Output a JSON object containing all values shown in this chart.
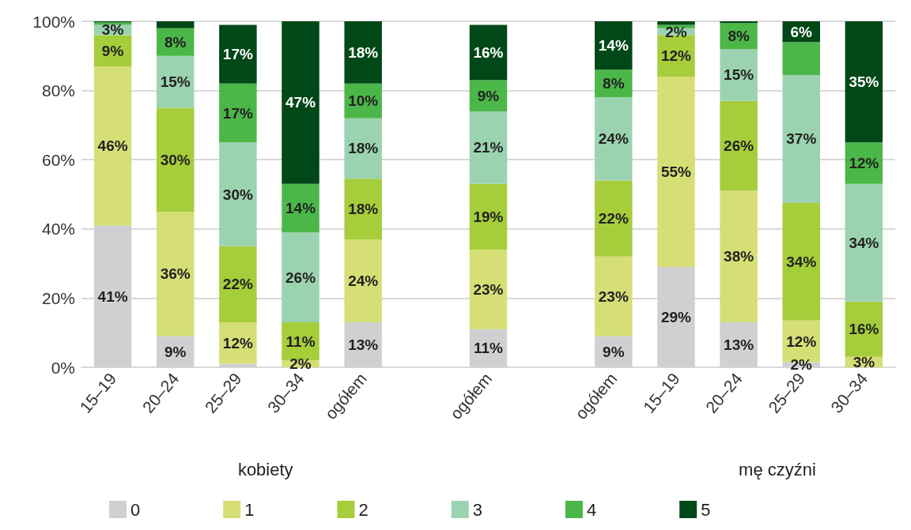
{
  "chart_data": {
    "type": "bar",
    "stacked": true,
    "categories": [
      "15–19",
      "20–24",
      "25–29",
      "30–34",
      "ogółem",
      null,
      "ogółem",
      null,
      "ogółem",
      "15–19",
      "20–24",
      "25–29",
      "30–34"
    ],
    "ylim": [
      0,
      100
    ],
    "yticks": [
      {
        "value": 0,
        "label": "0%"
      },
      {
        "value": 20,
        "label": "20%"
      },
      {
        "value": 40,
        "label": "40%"
      },
      {
        "value": 60,
        "label": "60%"
      },
      {
        "value": 80,
        "label": "80%"
      },
      {
        "value": 100,
        "label": "100%"
      }
    ],
    "grid": "y",
    "legend": "bottom",
    "annotations": [
      "kobiety",
      "mę czyźni"
    ],
    "series": [
      {
        "name": "0",
        "color": "#d0d0d2",
        "values": [
          41,
          9,
          1,
          0,
          13,
          null,
          11,
          null,
          9,
          29,
          13,
          1.5,
          0
        ],
        "value_labels": [
          "41%",
          "9%",
          null,
          null,
          "13%",
          null,
          "11%",
          null,
          "9%",
          "29%",
          "13%",
          "2%",
          null
        ]
      },
      {
        "name": "1",
        "color": "#d5df76",
        "values": [
          46,
          36,
          12,
          2,
          24,
          null,
          23,
          null,
          23,
          55,
          38,
          12,
          3
        ],
        "value_labels": [
          "46%",
          "36%",
          "12%",
          "2%",
          "24%",
          null,
          "23%",
          null,
          "23%",
          "55%",
          "38%",
          "12%",
          "3%"
        ]
      },
      {
        "name": "2",
        "color": "#a6cd3a",
        "values": [
          9,
          30,
          22,
          11,
          17.5,
          null,
          19,
          null,
          22,
          12,
          26,
          34,
          16
        ],
        "value_labels": [
          "9%",
          "30%",
          "22%",
          "11%",
          "18%",
          null,
          "19%",
          null,
          "22%",
          "12%",
          "26%",
          "34%",
          "16%"
        ]
      },
      {
        "name": "3",
        "color": "#9bd3b0",
        "values": [
          3,
          15,
          30,
          26,
          17.5,
          null,
          21,
          null,
          24,
          2,
          15,
          37,
          34
        ],
        "value_labels": [
          "3%",
          "15%",
          "30%",
          "26%",
          "18%",
          null,
          "21%",
          null,
          "24%",
          "2%",
          "15%",
          "37%",
          "34%"
        ]
      },
      {
        "name": "4",
        "color": "#4cb749",
        "values": [
          0.7,
          8,
          17,
          14,
          10,
          null,
          9,
          null,
          8,
          1,
          7.5,
          9.5,
          12
        ],
        "value_labels": [
          null,
          "8%",
          "17%",
          "14%",
          "10%",
          null,
          "9%",
          null,
          "8%",
          null,
          "8%",
          null,
          "12%"
        ]
      },
      {
        "name": "5",
        "color": "#004817",
        "values": [
          0.3,
          2,
          17,
          47,
          18,
          null,
          16,
          null,
          14,
          1,
          0.5,
          6,
          35
        ],
        "value_labels": [
          null,
          null,
          "17%",
          "47%",
          "18%",
          null,
          "16%",
          null,
          "14%",
          null,
          null,
          "6%",
          "35%"
        ]
      }
    ]
  }
}
